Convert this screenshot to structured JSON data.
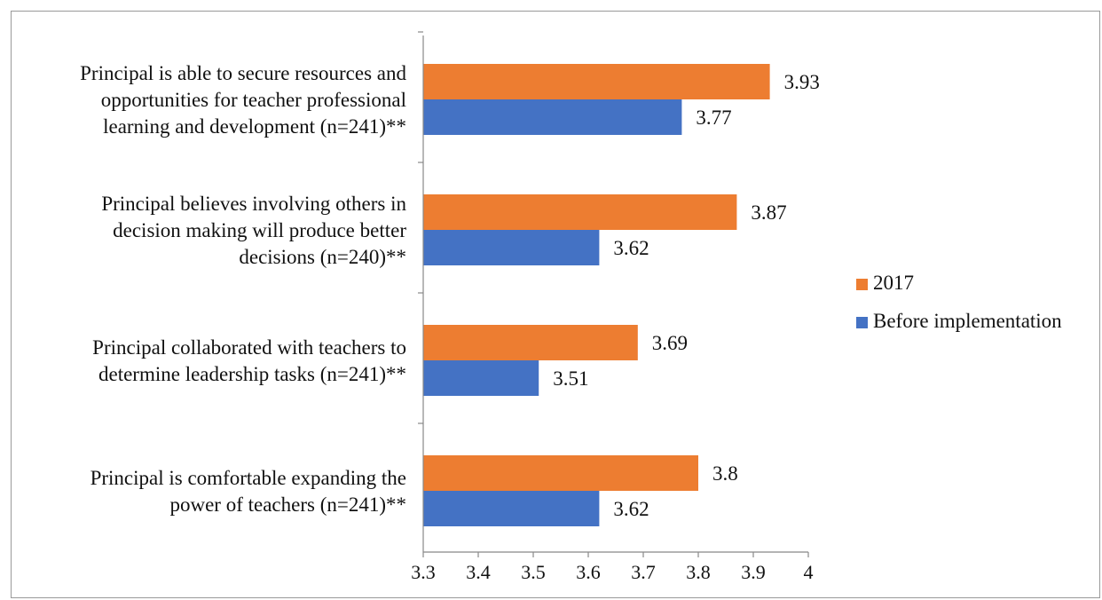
{
  "chart_data": {
    "type": "bar",
    "orientation": "horizontal",
    "categories": [
      "Principal is able to secure resources and opportunities for teacher professional learning and development (n=241)**",
      "Principal believes involving others in decision making will produce better decisions (n=240)**",
      "Principal collaborated with teachers to determine leadership tasks (n=241)**",
      "Principal is comfortable expanding the power of teachers (n=241)**"
    ],
    "category_lines": [
      [
        "Principal is able to secure resources and",
        "opportunities for teacher professional",
        "learning and development (n=241)**"
      ],
      [
        "Principal believes involving others in",
        "decision making will produce better",
        "decisions (n=240)**"
      ],
      [
        "Principal collaborated with teachers to",
        "determine leadership tasks (n=241)**"
      ],
      [
        "Principal is comfortable expanding the",
        "power of teachers (n=241)**"
      ]
    ],
    "series": [
      {
        "name": "2017",
        "color": "#ED7D31",
        "values": [
          3.93,
          3.87,
          3.69,
          3.8
        ],
        "labels": [
          "3.93",
          "3.87",
          "3.69",
          "3.8"
        ]
      },
      {
        "name": "Before implementation",
        "color": "#4472C4",
        "values": [
          3.77,
          3.62,
          3.51,
          3.62
        ],
        "labels": [
          "3.77",
          "3.62",
          "3.51",
          "3.62"
        ]
      }
    ],
    "xlim": [
      3.3,
      4
    ],
    "xticks": [
      "3.3",
      "3.4",
      "3.5",
      "3.6",
      "3.7",
      "3.8",
      "3.9",
      "4"
    ],
    "xlabel": "",
    "ylabel": "",
    "title": "",
    "grid": false,
    "legend_position": "right"
  }
}
